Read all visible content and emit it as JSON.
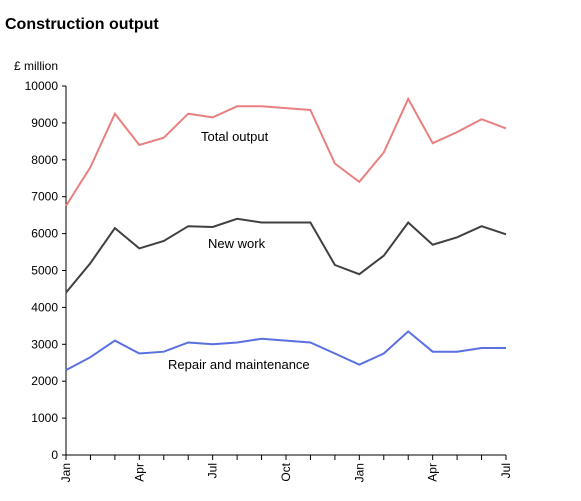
{
  "chart_data": {
    "type": "line",
    "title": "Construction output",
    "ylabel": "£ million",
    "xlabel": "",
    "ylim": [
      0,
      10000
    ],
    "y_ticks": [
      "0",
      "1000",
      "2000",
      "3000",
      "4000",
      "5000",
      "6000",
      "7000",
      "8000",
      "9000",
      "10000"
    ],
    "x_ticks": [
      {
        "index": 0,
        "label": "Jan"
      },
      {
        "index": 3,
        "label": "Apr"
      },
      {
        "index": 6,
        "label": "Jul"
      },
      {
        "index": 9,
        "label": "Oct"
      },
      {
        "index": 12,
        "label": "Jan"
      },
      {
        "index": 15,
        "label": "Apr"
      },
      {
        "index": 18,
        "label": "Jul"
      }
    ],
    "x_count": 19,
    "grid": false,
    "series": [
      {
        "name": "Total output",
        "color": "#e88080",
        "values": [
          6750,
          7800,
          9250,
          8400,
          8600,
          9250,
          9150,
          9450,
          9450,
          9400,
          9350,
          7900,
          7400,
          8200,
          9650,
          8450,
          8750,
          9100,
          8850
        ]
      },
      {
        "name": "New work",
        "color": "#404040",
        "values": [
          4400,
          5200,
          6150,
          5600,
          5800,
          6200,
          6180,
          6400,
          6300,
          6300,
          6300,
          5150,
          4900,
          5400,
          6300,
          5700,
          5900,
          6200,
          5980
        ]
      },
      {
        "name": "Repair and maintenance",
        "color": "#5a6fe0",
        "values": [
          2300,
          2650,
          3100,
          2750,
          2800,
          3050,
          3000,
          3050,
          3150,
          3100,
          3050,
          2750,
          2450,
          2750,
          3350,
          2800,
          2800,
          2900,
          2900
        ]
      }
    ]
  }
}
